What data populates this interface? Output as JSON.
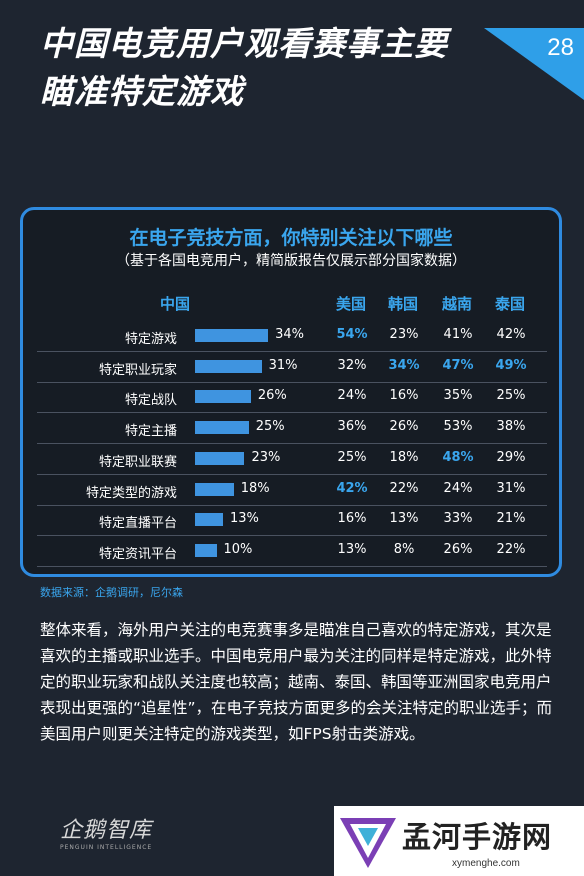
{
  "page": {
    "title": "中国电竞用户观看赛事主要瞄准特定游戏",
    "number": "28"
  },
  "survey": {
    "question": "在电子竞技方面，你特别关注以下哪些",
    "note": "（基于各国电竞用户，精简版报告仅展示部分国家数据）",
    "columns": [
      "中国",
      "美国",
      "韩国",
      "越南",
      "泰国"
    ],
    "rows": [
      {
        "label": "特定游戏",
        "china": "34%",
        "china_value": 34,
        "others": [
          "54%",
          "23%",
          "41%",
          "42%"
        ],
        "highlight": [
          true,
          false,
          false,
          false
        ]
      },
      {
        "label": "特定职业玩家",
        "china": "31%",
        "china_value": 31,
        "others": [
          "32%",
          "34%",
          "47%",
          "49%"
        ],
        "highlight": [
          false,
          true,
          true,
          true
        ]
      },
      {
        "label": "特定战队",
        "china": "26%",
        "china_value": 26,
        "others": [
          "24%",
          "16%",
          "35%",
          "25%"
        ],
        "highlight": [
          false,
          false,
          false,
          false
        ]
      },
      {
        "label": "特定主播",
        "china": "25%",
        "china_value": 25,
        "others": [
          "36%",
          "26%",
          "53%",
          "38%"
        ],
        "highlight": [
          false,
          false,
          false,
          false
        ]
      },
      {
        "label": "特定职业联赛",
        "china": "23%",
        "china_value": 23,
        "others": [
          "25%",
          "18%",
          "48%",
          "29%"
        ],
        "highlight": [
          false,
          false,
          true,
          false
        ]
      },
      {
        "label": "特定类型的游戏",
        "china": "18%",
        "china_value": 18,
        "others": [
          "42%",
          "22%",
          "24%",
          "31%"
        ],
        "highlight": [
          true,
          false,
          false,
          false
        ]
      },
      {
        "label": "特定直播平台",
        "china": "13%",
        "china_value": 13,
        "others": [
          "16%",
          "13%",
          "33%",
          "21%"
        ],
        "highlight": [
          false,
          false,
          false,
          false
        ]
      },
      {
        "label": "特定资讯平台",
        "china": "10%",
        "china_value": 10,
        "others": [
          "13%",
          "8%",
          "26%",
          "22%"
        ],
        "highlight": [
          false,
          false,
          false,
          false
        ]
      }
    ]
  },
  "source": "数据来源：企鹅调研，尼尔森",
  "summary": "整体来看，海外用户关注的电竞赛事多是瞄准自己喜欢的特定游戏，其次是喜欢的主播或职业选手。中国电竞用户最为关注的同样是特定游戏，此外特定的职业玩家和战队关注度也较高；越南、泰国、韩国等亚洲国家电竞用户表现出更强的“追星性”，在电子竞技方面更多的会关注特定的职业选手；而美国用户则更关注特定的游戏类型，如FPS射击类游戏。",
  "brand": {
    "name": "企鹅智库",
    "tagline": "PENGUIN INTELLIGENCE"
  },
  "watermark": {
    "name": "孟河手游网",
    "url": "xymenghe.com"
  },
  "colors": {
    "background": "#1e2530",
    "accent": "#3aa6ee",
    "bar": "#3f94e0",
    "panel_border": "#2f8be0"
  }
}
